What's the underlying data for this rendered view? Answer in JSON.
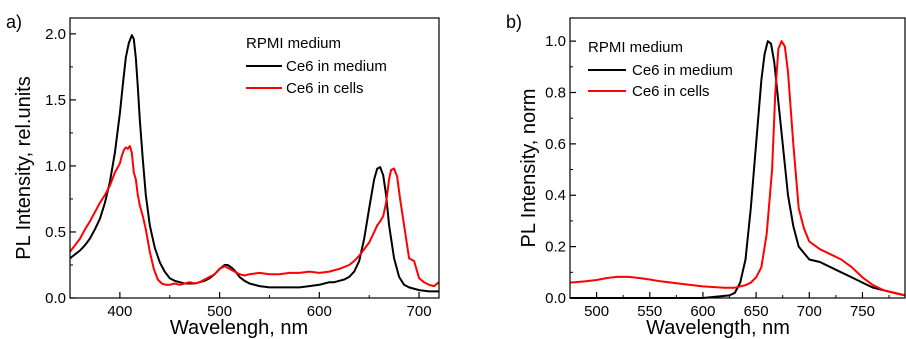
{
  "chart_data": [
    {
      "type": "line",
      "panel_label": "a)",
      "xlabel": "Wavelengh, nm",
      "ylabel": "PL Intensity, rel.units",
      "xlim": [
        350,
        720
      ],
      "ylim": [
        0,
        2.12
      ],
      "xticks": [
        400,
        500,
        600,
        700
      ],
      "yticks": [
        0.0,
        0.5,
        1.0,
        1.5,
        2.0
      ],
      "ytick_labels": [
        "0.0",
        "0.5",
        "1.0",
        "1.5",
        "2.0"
      ],
      "grid": false,
      "legend_position": "top-right",
      "legend_title": "RPMI medium",
      "series": [
        {
          "name": "Ce6 in medium",
          "color": "#000000",
          "x": [
            350,
            355,
            360,
            365,
            370,
            375,
            380,
            385,
            390,
            395,
            400,
            403,
            406,
            409,
            412,
            414,
            416,
            418,
            420,
            423,
            426,
            430,
            435,
            440,
            445,
            450,
            455,
            460,
            465,
            470,
            475,
            480,
            485,
            490,
            495,
            500,
            505,
            508,
            512,
            516,
            520,
            525,
            530,
            540,
            550,
            560,
            570,
            580,
            590,
            600,
            605,
            610,
            615,
            620,
            625,
            630,
            635,
            640,
            645,
            650,
            655,
            658,
            661,
            664,
            667,
            670,
            675,
            680,
            685,
            690,
            700,
            710,
            720
          ],
          "y": [
            0.3,
            0.33,
            0.36,
            0.4,
            0.45,
            0.52,
            0.6,
            0.72,
            0.88,
            1.1,
            1.4,
            1.62,
            1.82,
            1.93,
            1.99,
            1.96,
            1.82,
            1.6,
            1.35,
            1.05,
            0.78,
            0.55,
            0.38,
            0.27,
            0.2,
            0.15,
            0.13,
            0.12,
            0.11,
            0.11,
            0.11,
            0.12,
            0.13,
            0.15,
            0.18,
            0.22,
            0.25,
            0.25,
            0.23,
            0.2,
            0.16,
            0.13,
            0.11,
            0.09,
            0.08,
            0.08,
            0.08,
            0.08,
            0.09,
            0.1,
            0.11,
            0.12,
            0.12,
            0.13,
            0.14,
            0.16,
            0.2,
            0.28,
            0.45,
            0.68,
            0.9,
            0.98,
            0.99,
            0.93,
            0.78,
            0.55,
            0.3,
            0.16,
            0.1,
            0.08,
            0.06,
            0.05,
            0.05
          ]
        },
        {
          "name": "Ce6 in cells",
          "color": "#ff0000",
          "x": [
            350,
            355,
            360,
            365,
            370,
            375,
            380,
            385,
            390,
            395,
            400,
            402,
            404,
            406,
            408,
            410,
            412,
            414,
            416,
            418,
            420,
            423,
            426,
            430,
            434,
            438,
            442,
            446,
            450,
            455,
            460,
            465,
            470,
            475,
            480,
            485,
            490,
            495,
            500,
            505,
            510,
            515,
            520,
            525,
            530,
            540,
            550,
            560,
            570,
            580,
            590,
            600,
            610,
            620,
            630,
            635,
            640,
            645,
            650,
            655,
            658,
            661,
            664,
            667,
            670,
            672,
            675,
            678,
            681,
            685,
            690,
            695,
            700,
            705,
            710,
            715,
            720
          ],
          "y": [
            0.35,
            0.4,
            0.45,
            0.52,
            0.58,
            0.65,
            0.72,
            0.78,
            0.85,
            0.95,
            1.02,
            1.08,
            1.12,
            1.14,
            1.13,
            1.15,
            1.1,
            0.95,
            0.9,
            0.78,
            0.7,
            0.62,
            0.52,
            0.35,
            0.22,
            0.14,
            0.11,
            0.1,
            0.1,
            0.11,
            0.1,
            0.11,
            0.12,
            0.11,
            0.12,
            0.14,
            0.16,
            0.18,
            0.22,
            0.24,
            0.22,
            0.2,
            0.18,
            0.17,
            0.18,
            0.19,
            0.18,
            0.18,
            0.19,
            0.19,
            0.2,
            0.19,
            0.2,
            0.22,
            0.25,
            0.28,
            0.32,
            0.37,
            0.42,
            0.5,
            0.55,
            0.58,
            0.62,
            0.72,
            0.9,
            0.97,
            0.98,
            0.92,
            0.75,
            0.55,
            0.3,
            0.28,
            0.15,
            0.12,
            0.1,
            0.09,
            0.12
          ]
        }
      ]
    },
    {
      "type": "line",
      "panel_label": "b)",
      "xlabel": "Wavelength, nm",
      "ylabel": "PL Intensity, norm",
      "xlim": [
        475,
        790
      ],
      "ylim": [
        0,
        1.09
      ],
      "xticks": [
        500,
        550,
        600,
        650,
        700,
        750
      ],
      "yticks": [
        0.0,
        0.2,
        0.4,
        0.6,
        0.8,
        1.0
      ],
      "ytick_labels": [
        "0.0",
        "0.2",
        "0.4",
        "0.6",
        "0.8",
        "1.0"
      ],
      "grid": false,
      "legend_position": "top-left",
      "legend_title": "RPMI medium",
      "series": [
        {
          "name": "Ce6 in medium",
          "color": "#000000",
          "x": [
            475,
            500,
            550,
            600,
            625,
            630,
            635,
            640,
            645,
            650,
            655,
            658,
            661,
            664,
            667,
            670,
            675,
            680,
            685,
            690,
            700,
            710,
            720,
            730,
            740,
            750,
            760,
            770,
            780,
            790
          ],
          "y": [
            0.0,
            0.0,
            0.0,
            0.0,
            0.01,
            0.02,
            0.06,
            0.15,
            0.35,
            0.6,
            0.85,
            0.95,
            1.0,
            0.99,
            0.92,
            0.8,
            0.6,
            0.4,
            0.28,
            0.2,
            0.15,
            0.14,
            0.12,
            0.1,
            0.08,
            0.06,
            0.04,
            0.03,
            0.02,
            0.01
          ]
        },
        {
          "name": "Ce6 in cells",
          "color": "#ff0000",
          "x": [
            475,
            490,
            500,
            510,
            520,
            530,
            540,
            550,
            560,
            580,
            600,
            620,
            630,
            640,
            645,
            650,
            655,
            660,
            665,
            668,
            671,
            674,
            677,
            680,
            685,
            690,
            695,
            700,
            710,
            720,
            730,
            740,
            750,
            760,
            770,
            780,
            790
          ],
          "y": [
            0.06,
            0.065,
            0.07,
            0.078,
            0.083,
            0.082,
            0.078,
            0.072,
            0.065,
            0.055,
            0.045,
            0.04,
            0.04,
            0.05,
            0.06,
            0.08,
            0.12,
            0.25,
            0.5,
            0.8,
            0.97,
            1.0,
            0.98,
            0.88,
            0.6,
            0.35,
            0.27,
            0.22,
            0.19,
            0.17,
            0.15,
            0.12,
            0.08,
            0.05,
            0.03,
            0.02,
            0.01
          ]
        }
      ]
    }
  ]
}
